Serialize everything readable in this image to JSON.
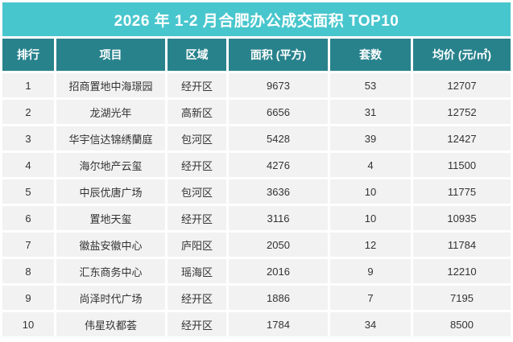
{
  "title": "2026 年 1-2 月合肥办公成交面积 TOP10",
  "colors": {
    "title_bg": "#48C6CD",
    "header_bg": "#28828C",
    "row_bg": "#F2F2F2",
    "title_text": "#FFFFFF",
    "row_text": "#333333"
  },
  "table": {
    "columns": [
      "排行",
      "项目",
      "区域",
      "面积 (平方)",
      "套数",
      "均价 (元/㎡)"
    ],
    "rows": [
      {
        "rank": "1",
        "project": "招商置地中海璟园",
        "district": "经开区",
        "area": "9673",
        "units": "53",
        "avg_price": "12707"
      },
      {
        "rank": "2",
        "project": "龙湖光年",
        "district": "高新区",
        "area": "6656",
        "units": "31",
        "avg_price": "12752"
      },
      {
        "rank": "3",
        "project": "华宇信达锦绣蘭庭",
        "district": "包河区",
        "area": "5428",
        "units": "39",
        "avg_price": "12427"
      },
      {
        "rank": "4",
        "project": "海尔地产云玺",
        "district": "经开区",
        "area": "4276",
        "units": "4",
        "avg_price": "11500"
      },
      {
        "rank": "5",
        "project": "中辰优唐广场",
        "district": "包河区",
        "area": "3636",
        "units": "10",
        "avg_price": "11775"
      },
      {
        "rank": "6",
        "project": "置地天玺",
        "district": "经开区",
        "area": "3116",
        "units": "10",
        "avg_price": "10935"
      },
      {
        "rank": "7",
        "project": "徽盐安徽中心",
        "district": "庐阳区",
        "area": "2050",
        "units": "12",
        "avg_price": "11784"
      },
      {
        "rank": "8",
        "project": "汇东商务中心",
        "district": "瑶海区",
        "area": "2016",
        "units": "9",
        "avg_price": "12210"
      },
      {
        "rank": "9",
        "project": "尚泽时代广场",
        "district": "经开区",
        "area": "1886",
        "units": "7",
        "avg_price": "7195"
      },
      {
        "rank": "10",
        "project": "伟星玖都荟",
        "district": "经开区",
        "area": "1784",
        "units": "34",
        "avg_price": "8500"
      }
    ]
  }
}
